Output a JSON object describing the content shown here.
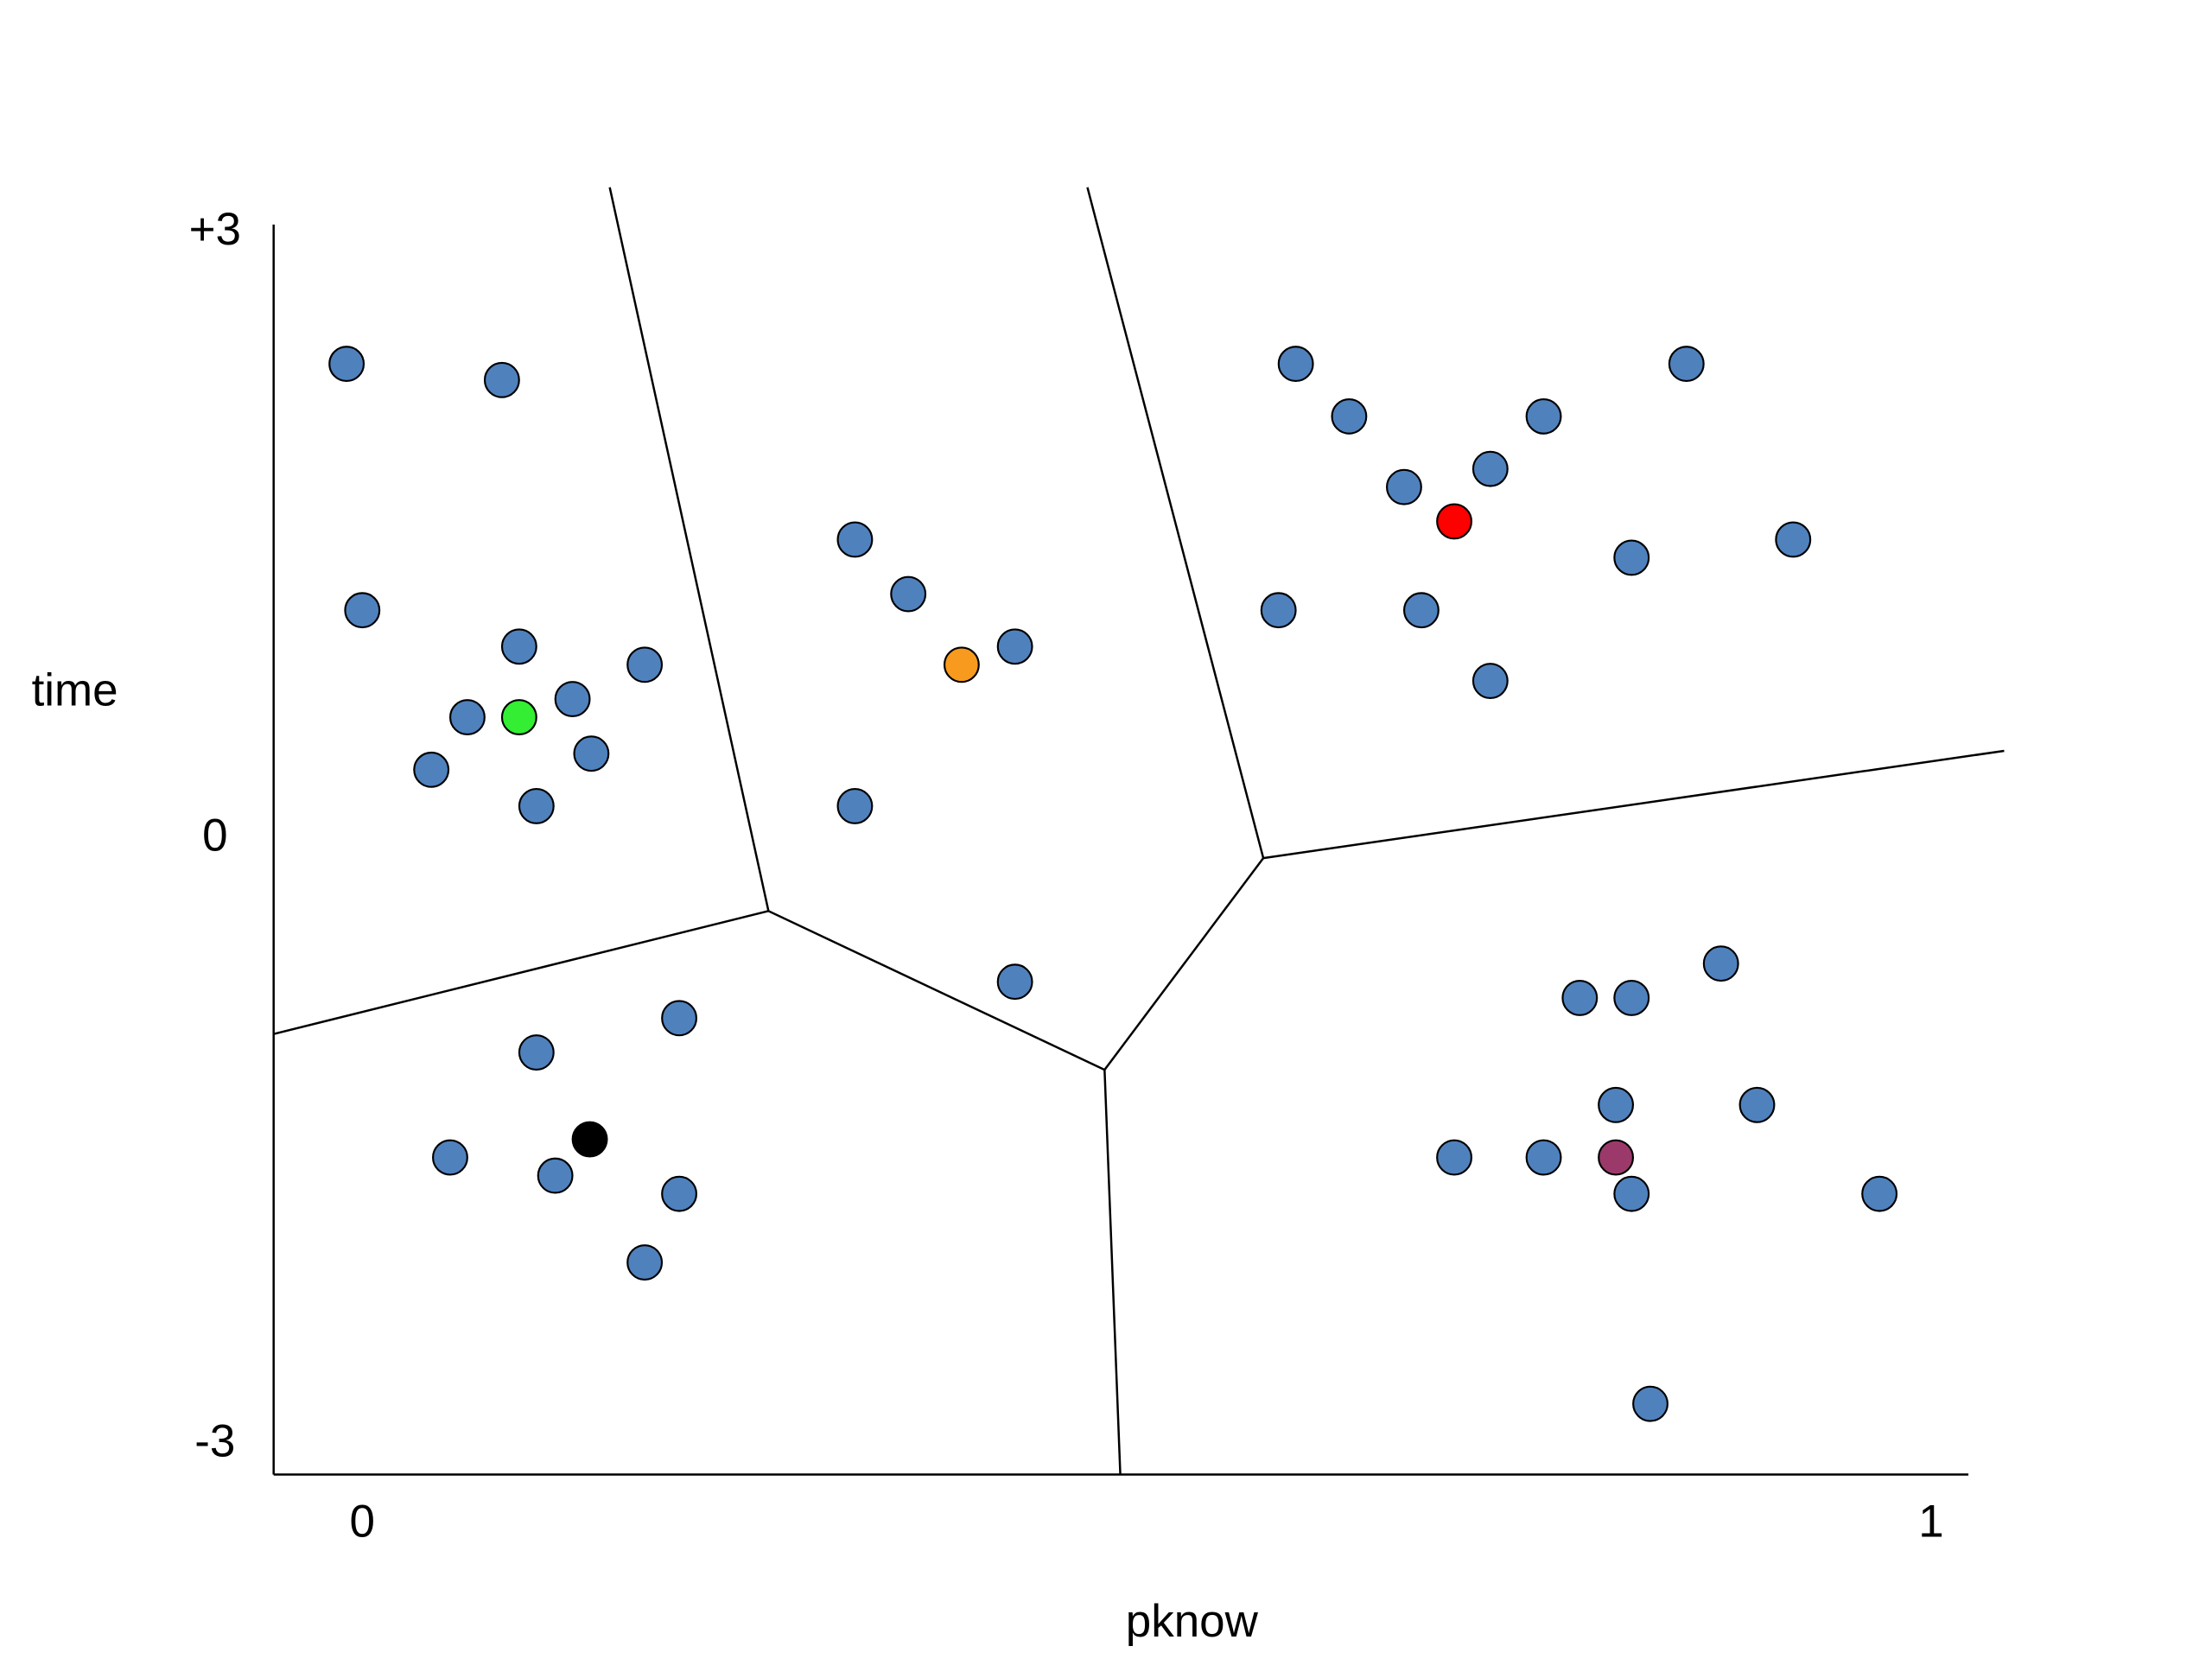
{
  "chart_data": {
    "type": "scatter",
    "x_label": "pknow",
    "y_label": "time",
    "xlim": [
      -0.0565,
      1.0237
    ],
    "ylim": [
      -3.15,
      3.04
    ],
    "xticks": [
      0,
      1
    ],
    "yticks": [
      {
        "value": 3,
        "label": "+3"
      },
      0,
      -3
    ],
    "grid": false,
    "series": [
      {
        "color": "#4f81bd",
        "x": [
          -0.01,
          0.089,
          0,
          0.1,
          0.18,
          0.067,
          0.134,
          0.146,
          0.044,
          0.111,
          0.314,
          0.348,
          0.416,
          0.314,
          0.416,
          0.595,
          0.629,
          0.753,
          0.844,
          0.664,
          0.719,
          0.809,
          0.912,
          0.584,
          0.675,
          0.719,
          0.202,
          0.111,
          0.056,
          0.123,
          0.202,
          0.18,
          0.866,
          0.776,
          0.809,
          0.799,
          0.889,
          0.696,
          0.753,
          0.809,
          0.967,
          0.821
        ],
        "values": [
          2.35,
          2.27,
          1.13,
          0.95,
          0.86,
          0.6,
          0.69,
          0.42,
          0.34,
          0.16,
          1.48,
          1.21,
          0.95,
          0.16,
          -0.71,
          2.35,
          2.09,
          2.09,
          2.35,
          1.74,
          1.83,
          1.39,
          1.48,
          1.13,
          1.13,
          0.78,
          -0.89,
          -1.06,
          -1.58,
          -1.67,
          -1.76,
          -2.1,
          -0.62,
          -0.79,
          -0.79,
          -1.32,
          -1.32,
          -1.58,
          -1.58,
          -1.76,
          -1.76,
          -2.8
        ]
      },
      {
        "colors": [
          "#33ee33",
          "#f79a1e",
          "#ff0000",
          "#000000",
          "#9b3a6a"
        ],
        "x": [
          0.1,
          0.382,
          0.696,
          0.145,
          0.799
        ],
        "values": [
          0.6,
          0.86,
          1.57,
          -1.49,
          -1.58
        ]
      }
    ]
  }
}
